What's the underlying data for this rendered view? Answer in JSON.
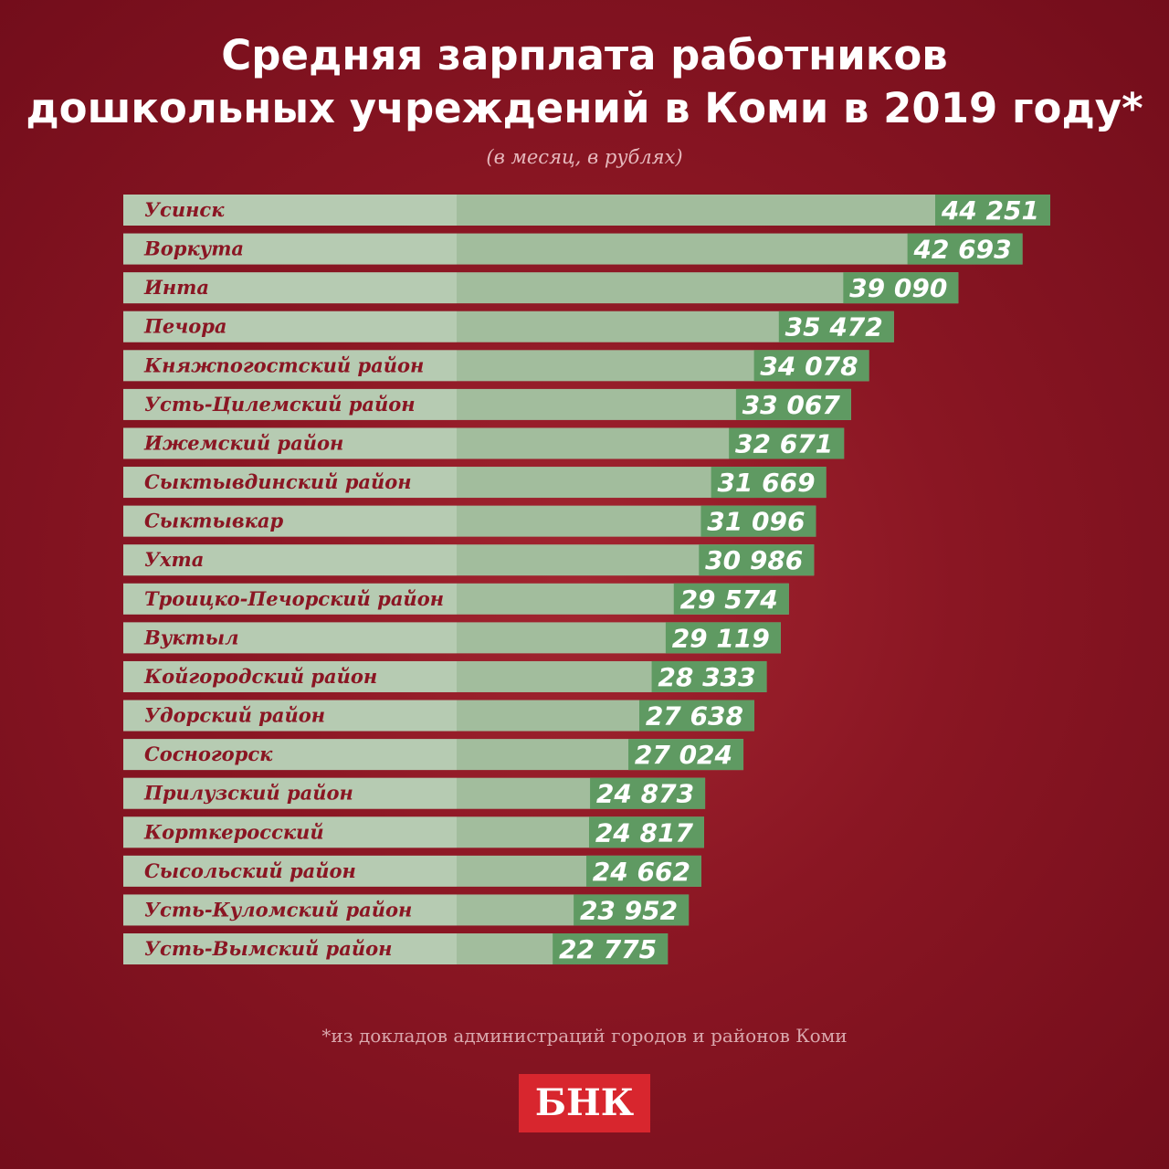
{
  "chart_data": {
    "type": "bar",
    "orientation": "horizontal",
    "title": [
      "Средняя зарплата работников",
      "дошкольных учреждений в Коми в 2019 году*"
    ],
    "subtitle": "(в месяц, в рублях)",
    "categories": [
      "Усинск",
      "Воркута",
      "Инта",
      "Печора",
      "Княжпогостский район",
      "Усть-Цилемский район",
      "Ижемский район",
      "Сыктывдинский район",
      "Сыктывкар",
      "Ухта",
      "Троицко-Печорский район",
      "Вуктыл",
      "Койгородский район",
      "Удорский район",
      "Сосногорск",
      "Прилузский район",
      "Корткеросский",
      "Сысольский район",
      "Усть-Куломский район",
      "Усть-Вымский район"
    ],
    "values": [
      44251,
      42693,
      39090,
      35472,
      34078,
      33067,
      32671,
      31669,
      31096,
      30986,
      29574,
      29119,
      28333,
      27638,
      27024,
      24873,
      24817,
      24662,
      23952,
      22775
    ],
    "value_labels": [
      "44 251",
      "42 693",
      "39 090",
      "35 472",
      "34 078",
      "33 067",
      "32 671",
      "31 669",
      "31 096",
      "30 986",
      "29 574",
      "29 119",
      "28 333",
      "27 638",
      "27 024",
      "24 873",
      "24 817",
      "24 662",
      "23 952",
      "22 775"
    ],
    "color": "#a2bd9d",
    "label_color": "#5f9a62",
    "note": "*из докладов администраций городов и районов Коми",
    "logo": "БНК"
  }
}
